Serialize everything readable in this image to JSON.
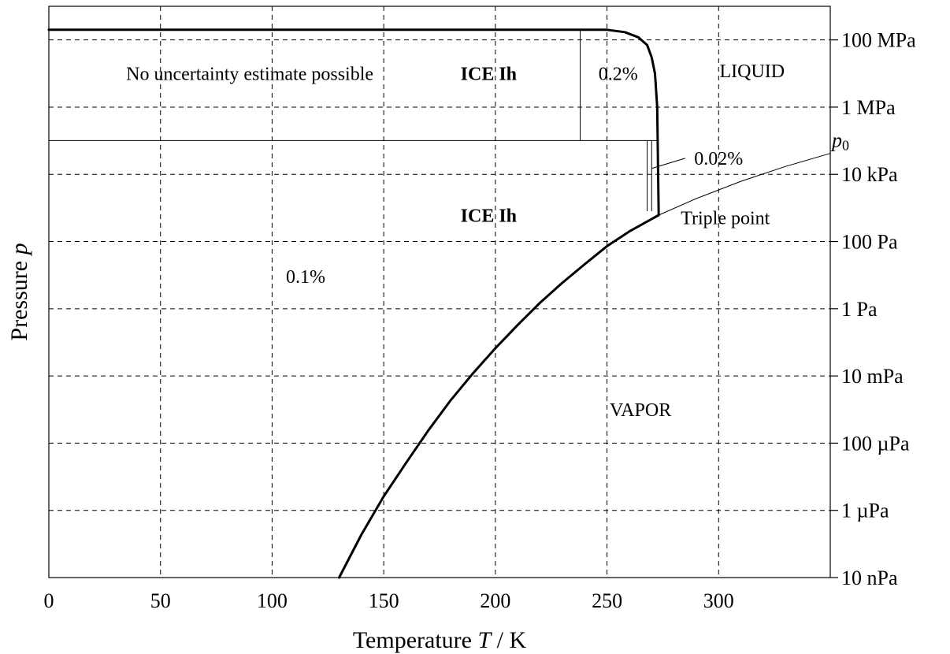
{
  "chart_data": {
    "type": "line",
    "xlabel": {
      "prefix": "Temperature ",
      "symbol": "T",
      "suffix": " / K"
    },
    "ylabel": {
      "prefix": "Pressure ",
      "symbol": "p"
    },
    "xlim": [
      0,
      350
    ],
    "ylim_pa": [
      1e-08,
      1000000000.0
    ],
    "y_scale": "log",
    "grid": true,
    "x_ticks": [
      0,
      50,
      100,
      150,
      200,
      250,
      300
    ],
    "y_ticks": [
      {
        "value": 100000000.0,
        "label": "100 MPa"
      },
      {
        "value": 1000000.0,
        "label": "1 MPa"
      },
      {
        "value": 10000.0,
        "label": "10 kPa"
      },
      {
        "value": 100.0,
        "label": "100 Pa"
      },
      {
        "value": 1,
        "label": "1 Pa"
      },
      {
        "value": 0.01,
        "label": "10 mPa"
      },
      {
        "value": 0.0001,
        "label": "100 µPa"
      },
      {
        "value": 1e-06,
        "label": "1 µPa"
      },
      {
        "value": 1e-08,
        "label": "10 nPa"
      }
    ],
    "p0": {
      "symbol": "p",
      "subscript": "0",
      "value_pa": 101325
    },
    "series": [
      {
        "x": [
          130,
          140,
          150,
          160,
          170,
          180,
          190,
          200,
          210,
          220,
          230,
          240,
          250,
          260,
          270,
          273.16
        ],
        "y": [
          1e-08,
          1.9e-07,
          2.6e-06,
          2.6e-05,
          0.00024,
          0.0019,
          0.012,
          0.067,
          0.33,
          1.5,
          5.9,
          21,
          73,
          200,
          470,
          611.657
        ]
      },
      {
        "x": [
          273.16,
          290,
          310,
          330,
          350
        ],
        "y": [
          611.657,
          1900,
          6200,
          17200,
          42000
        ]
      },
      {
        "x": [
          0,
          100,
          200,
          250,
          258,
          264,
          268,
          270,
          271.5,
          272.5,
          273.16
        ],
        "y": [
          200000000.0,
          200000000.0,
          200000000.0,
          200000000.0,
          170000000.0,
          120000000.0,
          70000000.0,
          30000000.0,
          10000000.0,
          1000000.0,
          611.657
        ]
      }
    ],
    "regions": [
      {
        "label": "No uncertainty estimate possible",
        "bold": false,
        "x": 90,
        "p": 10000000.0
      },
      {
        "label": "ICE Ih",
        "bold": true,
        "x": 197,
        "p": 10000000.0
      },
      {
        "label": "0.2%",
        "bold": false,
        "x": 255,
        "p": 10000000.0
      },
      {
        "label": "LIQUID",
        "bold": false,
        "x": 315,
        "p": 12000000.0
      },
      {
        "label": "0.02%",
        "bold": false,
        "x": 300,
        "p": 30000.0
      },
      {
        "label": "ICE Ih",
        "bold": true,
        "x": 197,
        "p": 600
      },
      {
        "label": "Triple point",
        "bold": false,
        "x": 303,
        "p": 500
      },
      {
        "label": "0.1%",
        "bold": false,
        "x": 115,
        "p": 9
      },
      {
        "label": "VAPOR",
        "bold": false,
        "x": 265,
        "p": 0.001
      }
    ],
    "boundaries": [
      {
        "x": [
          0,
          273.16
        ],
        "p": [
          101325,
          101325
        ]
      },
      {
        "x": [
          238,
          238
        ],
        "p": [
          101325,
          200000000.0
        ]
      },
      {
        "x": [
          268,
          268
        ],
        "p": [
          800,
          101325
        ]
      },
      {
        "x": [
          270,
          270
        ],
        "p": [
          800,
          101325
        ]
      }
    ],
    "pointer": {
      "from": {
        "x": 285,
        "p": 30000.0
      },
      "to": {
        "x": 270,
        "p": 15000.0
      }
    }
  }
}
